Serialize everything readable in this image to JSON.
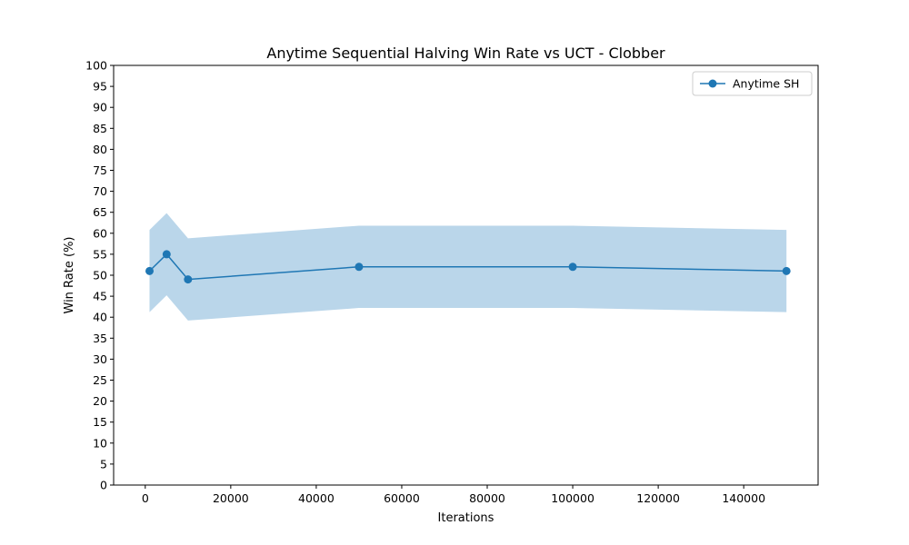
{
  "chart_data": {
    "type": "line",
    "title": "Anytime Sequential Halving Win Rate vs UCT - Clobber",
    "xlabel": "Iterations",
    "ylabel": "Win Rate (%)",
    "xlim": [
      -7400,
      157400
    ],
    "ylim": [
      0,
      100
    ],
    "x_ticks": [
      0,
      20000,
      40000,
      60000,
      80000,
      100000,
      120000,
      140000
    ],
    "y_ticks": [
      0,
      5,
      10,
      15,
      20,
      25,
      30,
      35,
      40,
      45,
      50,
      55,
      60,
      65,
      70,
      75,
      80,
      85,
      90,
      95,
      100
    ],
    "grid": false,
    "legend_position": "top-right",
    "series": [
      {
        "name": "Anytime SH",
        "color": "#1f77b4",
        "marker": "circle",
        "x": [
          1000,
          5000,
          10000,
          50000,
          100000,
          150000
        ],
        "y": [
          51,
          55,
          49,
          52,
          52,
          51
        ],
        "band_lower": [
          41.2,
          45.2,
          39.2,
          42.2,
          42.2,
          41.2
        ],
        "band_upper": [
          60.8,
          64.8,
          58.8,
          61.8,
          61.8,
          60.8
        ],
        "band_color": "#bad6ea"
      }
    ]
  }
}
